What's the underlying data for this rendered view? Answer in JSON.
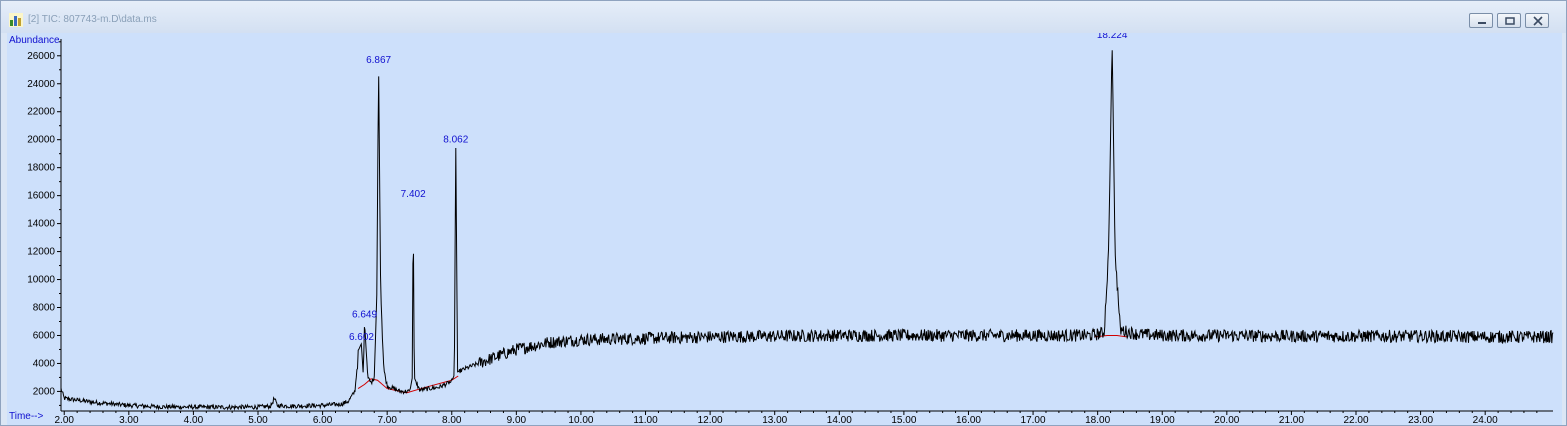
{
  "window": {
    "title": "[2] TIC: 807743-m.D\\data.ms",
    "icon": "chromatogram-app-icon",
    "buttons": [
      "minimize",
      "restore",
      "close"
    ]
  },
  "colors": {
    "plot_background": "#cde0fb",
    "trace": "#000000",
    "baseline": "#d00000",
    "peak_label": "#1010d0",
    "axis_label": "#1010d0"
  },
  "chart_data": {
    "type": "line",
    "title": "",
    "ylabel": "Abundance",
    "xlabel": "Time-->",
    "xlim": [
      1.95,
      25.05
    ],
    "ylim": [
      600,
      27200
    ],
    "x_ticks": [
      "2.00",
      "3.00",
      "4.00",
      "5.00",
      "6.00",
      "7.00",
      "8.00",
      "9.00",
      "10.00",
      "11.00",
      "12.00",
      "13.00",
      "14.00",
      "15.00",
      "16.00",
      "17.00",
      "18.00",
      "19.00",
      "20.00",
      "21.00",
      "22.00",
      "23.00",
      "24.00"
    ],
    "y_ticks": [
      "2000",
      "4000",
      "6000",
      "8000",
      "10000",
      "12000",
      "14000",
      "16000",
      "18000",
      "20000",
      "22000",
      "24000",
      "26000"
    ],
    "grid": false,
    "series": [
      {
        "role": "signal",
        "points": [
          [
            1.95,
            2200
          ],
          [
            2.0,
            1500
          ],
          [
            2.5,
            1200
          ],
          [
            3.0,
            1000
          ],
          [
            3.5,
            900
          ],
          [
            4.0,
            880
          ],
          [
            4.5,
            870
          ],
          [
            5.0,
            880
          ],
          [
            5.2,
            950
          ],
          [
            5.25,
            1500
          ],
          [
            5.3,
            1000
          ],
          [
            5.5,
            950
          ],
          [
            6.0,
            1000
          ],
          [
            6.3,
            1100
          ],
          [
            6.4,
            1300
          ],
          [
            6.5,
            2000
          ],
          [
            6.56,
            5000
          ],
          [
            6.6,
            5400
          ],
          [
            6.63,
            3200
          ],
          [
            6.649,
            7000
          ],
          [
            6.7,
            3000
          ],
          [
            6.75,
            2600
          ],
          [
            6.8,
            3000
          ],
          [
            6.84,
            9000
          ],
          [
            6.867,
            25200
          ],
          [
            6.9,
            9000
          ],
          [
            6.95,
            3500
          ],
          [
            7.0,
            2400
          ],
          [
            7.2,
            2000
          ],
          [
            7.35,
            2000
          ],
          [
            7.39,
            3000
          ],
          [
            7.402,
            15600
          ],
          [
            7.42,
            3000
          ],
          [
            7.5,
            2100
          ],
          [
            7.8,
            2300
          ],
          [
            8.0,
            2700
          ],
          [
            8.04,
            3200
          ],
          [
            8.062,
            19500
          ],
          [
            8.09,
            3400
          ],
          [
            8.3,
            3800
          ],
          [
            8.7,
            4500
          ],
          [
            9.0,
            5000
          ],
          [
            9.5,
            5500
          ],
          [
            10.0,
            5700
          ],
          [
            11.0,
            5800
          ],
          [
            12.0,
            5900
          ],
          [
            13.0,
            5950
          ],
          [
            14.0,
            6000
          ],
          [
            15.0,
            6000
          ],
          [
            16.0,
            6000
          ],
          [
            17.0,
            6000
          ],
          [
            17.9,
            6000
          ],
          [
            18.1,
            6200
          ],
          [
            18.17,
            12000
          ],
          [
            18.224,
            27000
          ],
          [
            18.27,
            12000
          ],
          [
            18.35,
            6400
          ],
          [
            18.6,
            6100
          ],
          [
            19.0,
            6000
          ],
          [
            20.0,
            6000
          ],
          [
            21.0,
            5950
          ],
          [
            22.0,
            5950
          ],
          [
            23.0,
            5950
          ],
          [
            24.0,
            5900
          ],
          [
            25.0,
            5900
          ]
        ]
      }
    ],
    "baselines": [
      [
        [
          6.55,
          2200
        ],
        [
          6.65,
          2500
        ],
        [
          6.75,
          2900
        ],
        [
          6.85,
          2800
        ],
        [
          7.0,
          2200
        ],
        [
          7.3,
          1900
        ],
        [
          7.6,
          2300
        ],
        [
          8.0,
          2800
        ],
        [
          8.1,
          3100
        ]
      ],
      [
        [
          17.95,
          5900
        ],
        [
          18.15,
          6000
        ],
        [
          18.3,
          6000
        ],
        [
          18.45,
          5900
        ]
      ]
    ],
    "peak_labels": [
      {
        "label": "6.602",
        "x": 6.602,
        "y": 5400
      },
      {
        "label": "6.649",
        "x": 6.649,
        "y": 7000
      },
      {
        "label": "6.867",
        "x": 6.867,
        "y": 25200
      },
      {
        "label": "7.402",
        "x": 7.402,
        "y": 15600
      },
      {
        "label": "8.062",
        "x": 8.062,
        "y": 19500
      },
      {
        "label": "18.224",
        "x": 18.224,
        "y": 27000
      }
    ]
  }
}
